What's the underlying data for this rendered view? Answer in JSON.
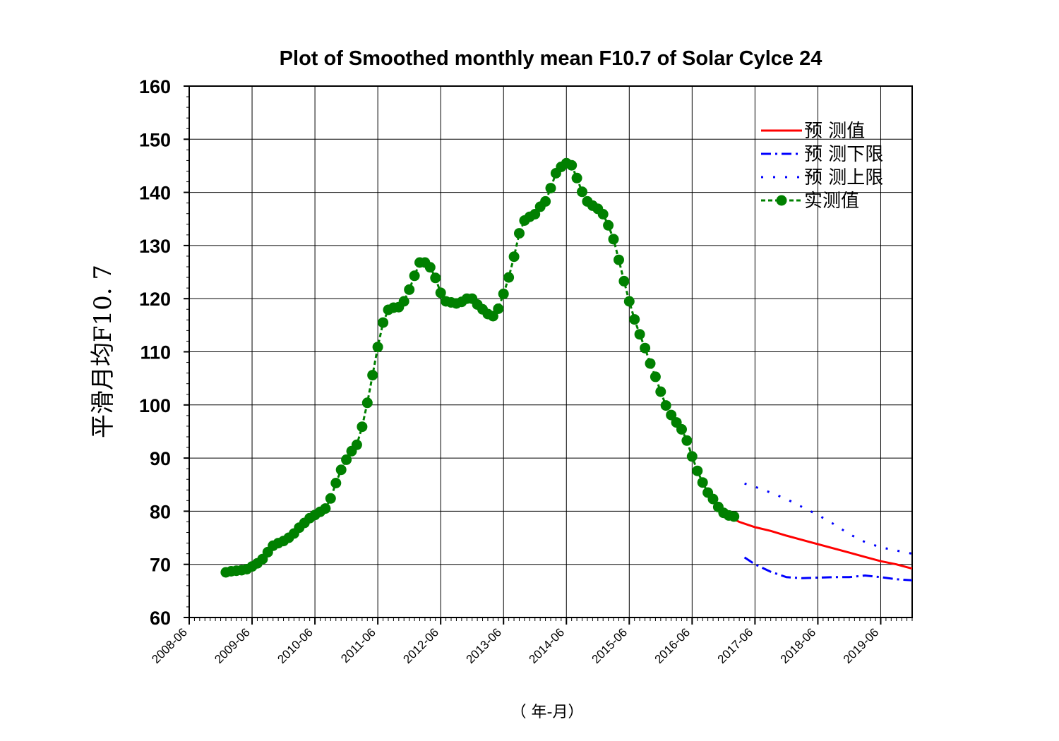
{
  "chart_data": {
    "type": "line",
    "title": "Plot of Smoothed monthly mean F10.7 of Solar Cylce 24",
    "xlabel": "（ 年-月）",
    "ylabel": "平滑月均F10. 7",
    "x_range": [
      "2008-06",
      "2019-12"
    ],
    "ylim": [
      60,
      160
    ],
    "y_ticks": [
      60,
      70,
      80,
      90,
      100,
      110,
      120,
      130,
      140,
      150,
      160
    ],
    "x_ticks": [
      "2008-06",
      "2009-06",
      "2010-06",
      "2011-06",
      "2012-06",
      "2013-06",
      "2014-06",
      "2015-06",
      "2016-06",
      "2017-06",
      "2018-06",
      "2019-06"
    ],
    "grid": true,
    "legend_position": "top-right",
    "series": [
      {
        "name": "预 测值",
        "color": "#ff0000",
        "style": "solid",
        "x": [
          "2017-01",
          "2017-03",
          "2017-06",
          "2017-09",
          "2017-12",
          "2018-03",
          "2018-06",
          "2018-09",
          "2018-12",
          "2019-03",
          "2019-06",
          "2019-09",
          "2019-12"
        ],
        "values": [
          79.0,
          78.0,
          77.0,
          76.3,
          75.4,
          74.6,
          73.8,
          73.0,
          72.2,
          71.4,
          70.6,
          70.0,
          69.2
        ]
      },
      {
        "name": "预 测下限",
        "color": "#0000ff",
        "style": "dashdot",
        "x": [
          "2017-04",
          "2017-06",
          "2017-09",
          "2017-12",
          "2018-03",
          "2018-06",
          "2018-09",
          "2018-12",
          "2019-03",
          "2019-06",
          "2019-09",
          "2019-12"
        ],
        "values": [
          71.3,
          70.0,
          68.6,
          67.6,
          67.4,
          67.5,
          67.6,
          67.6,
          67.9,
          67.6,
          67.2,
          67.0
        ]
      },
      {
        "name": "预 测上限",
        "color": "#0000ff",
        "style": "dotted",
        "x": [
          "2017-04",
          "2017-06",
          "2017-09",
          "2017-12",
          "2018-03",
          "2018-06",
          "2018-09",
          "2018-12",
          "2019-03",
          "2019-06",
          "2019-09",
          "2019-12"
        ],
        "values": [
          85.2,
          84.6,
          83.5,
          82.3,
          80.8,
          79.3,
          77.6,
          75.7,
          74.2,
          73.2,
          72.6,
          72.0
        ]
      },
      {
        "name": "实测值",
        "color": "#008000",
        "style": "dashed-markers",
        "x": [
          "2009-01",
          "2009-02",
          "2009-03",
          "2009-04",
          "2009-05",
          "2009-06",
          "2009-07",
          "2009-08",
          "2009-09",
          "2009-10",
          "2009-11",
          "2009-12",
          "2010-01",
          "2010-02",
          "2010-03",
          "2010-04",
          "2010-05",
          "2010-06",
          "2010-07",
          "2010-08",
          "2010-09",
          "2010-10",
          "2010-11",
          "2010-12",
          "2011-01",
          "2011-02",
          "2011-03",
          "2011-04",
          "2011-05",
          "2011-06",
          "2011-07",
          "2011-08",
          "2011-09",
          "2011-10",
          "2011-11",
          "2011-12",
          "2012-01",
          "2012-02",
          "2012-03",
          "2012-04",
          "2012-05",
          "2012-06",
          "2012-07",
          "2012-08",
          "2012-09",
          "2012-10",
          "2012-11",
          "2012-12",
          "2013-01",
          "2013-02",
          "2013-03",
          "2013-04",
          "2013-05",
          "2013-06",
          "2013-07",
          "2013-08",
          "2013-09",
          "2013-10",
          "2013-11",
          "2013-12",
          "2014-01",
          "2014-02",
          "2014-03",
          "2014-04",
          "2014-05",
          "2014-06",
          "2014-07",
          "2014-08",
          "2014-09",
          "2014-10",
          "2014-11",
          "2014-12",
          "2015-01",
          "2015-02",
          "2015-03",
          "2015-04",
          "2015-05",
          "2015-06",
          "2015-07",
          "2015-08",
          "2015-09",
          "2015-10",
          "2015-11",
          "2015-12",
          "2016-01",
          "2016-02",
          "2016-03",
          "2016-04",
          "2016-05",
          "2016-06",
          "2016-07",
          "2016-08",
          "2016-09",
          "2016-10",
          "2016-11",
          "2016-12",
          "2017-01",
          "2017-02"
        ],
        "values": [
          68.5,
          68.7,
          68.8,
          68.9,
          69.1,
          69.6,
          70.2,
          71.0,
          72.3,
          73.5,
          74.0,
          74.4,
          75.0,
          75.8,
          76.9,
          77.8,
          78.7,
          79.3,
          79.9,
          80.5,
          82.4,
          85.3,
          87.8,
          89.7,
          91.3,
          92.5,
          95.9,
          100.4,
          105.6,
          110.9,
          115.5,
          117.9,
          118.3,
          118.4,
          119.5,
          121.7,
          124.3,
          126.8,
          126.8,
          125.9,
          123.9,
          121.1,
          119.5,
          119.3,
          119.1,
          119.4,
          120.0,
          120.0,
          118.9,
          118.0,
          117.1,
          116.7,
          118.1,
          120.9,
          124.0,
          127.9,
          132.3,
          134.7,
          135.4,
          135.9,
          137.3,
          138.3,
          140.8,
          143.6,
          144.8,
          145.5,
          145.1,
          142.7,
          140.1,
          138.3,
          137.5,
          136.9,
          135.9,
          133.8,
          131.2,
          127.3,
          123.3,
          119.5,
          116.1,
          113.3,
          110.7,
          107.8,
          105.3,
          102.5,
          99.9,
          98.1,
          96.7,
          95.4,
          93.3,
          90.3,
          87.6,
          85.4,
          83.5,
          82.3,
          80.8,
          79.7,
          79.2,
          79.0
        ]
      }
    ]
  }
}
